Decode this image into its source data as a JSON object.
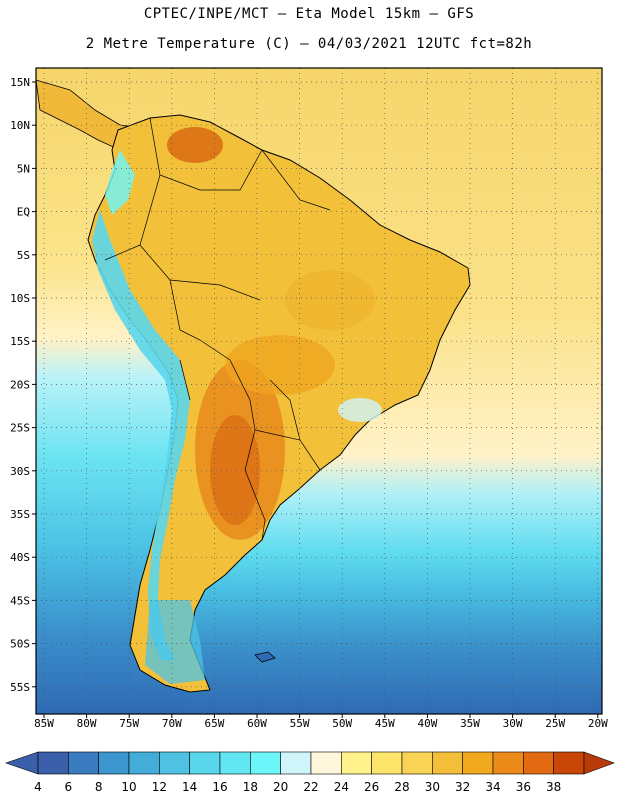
{
  "header": {
    "title_line1": "CPTEC/INPE/MCT –  Eta Model 15km – GFS",
    "title_line2": "2 Metre Temperature (C) – 04/03/2021 12UTC fct=82h"
  },
  "map": {
    "lat_labels": [
      "15N",
      "10N",
      "5N",
      "EQ",
      "5S",
      "10S",
      "15S",
      "20S",
      "25S",
      "30S",
      "35S",
      "40S",
      "45S",
      "50S",
      "55S"
    ],
    "lon_labels": [
      "85W",
      "80W",
      "75W",
      "70W",
      "65W",
      "60W",
      "55W",
      "50W",
      "45W",
      "40W",
      "35W",
      "30W",
      "25W",
      "20W"
    ],
    "ocean_colors": [
      "#2f6fb8",
      "#3a88c6",
      "#46a8d6",
      "#4bc4e6",
      "#60dff0",
      "#a8f0f8",
      "#fff2c8",
      "#fbe88a",
      "#f8dc72"
    ],
    "land_colors": [
      "#f3c03a",
      "#efa520",
      "#e8891c",
      "#d96a12"
    ],
    "grid": true
  },
  "legend": {
    "values": [
      "4",
      "6",
      "8",
      "10",
      "12",
      "14",
      "16",
      "18",
      "20",
      "22",
      "24",
      "26",
      "28",
      "30",
      "32",
      "34",
      "36",
      "38"
    ],
    "colors": [
      "#3b5fa8",
      "#3a7cbf",
      "#3a96cc",
      "#44acd8",
      "#4fc2e3",
      "#5ad6ec",
      "#62e7f2",
      "#6cf6fa",
      "#cff5fb",
      "#fff7dc",
      "#fff28c",
      "#fde46a",
      "#f8d356",
      "#f3bf3a",
      "#f0a81c",
      "#ec8a1a",
      "#e26a12",
      "#c84608"
    ],
    "low_arrow_color": "#3b5fa8",
    "high_arrow_color": "#b83a08"
  }
}
